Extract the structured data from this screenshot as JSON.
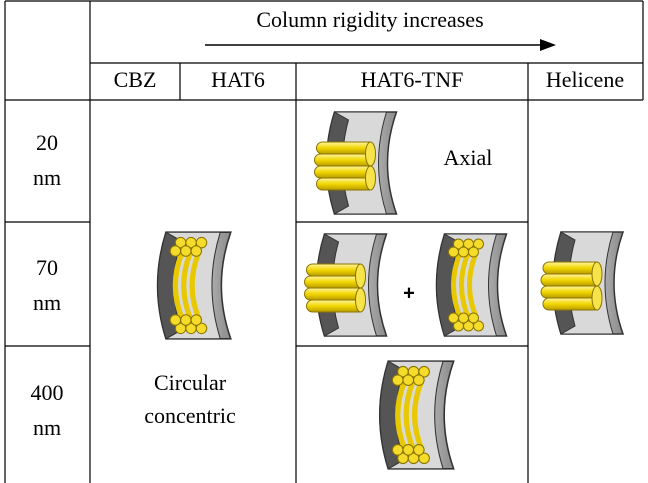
{
  "header": {
    "title": "Column rigidity increases",
    "columns": [
      "CBZ",
      "HAT6",
      "HAT6-TNF",
      "Helicene"
    ]
  },
  "rows": [
    {
      "size": [
        "20",
        "nm"
      ]
    },
    {
      "size": [
        "70",
        "nm"
      ]
    },
    {
      "size": [
        "400",
        "nm"
      ]
    }
  ],
  "labels": {
    "axial": "Axial",
    "plus": "+",
    "circular": [
      "Circular",
      "concentric"
    ]
  }
}
